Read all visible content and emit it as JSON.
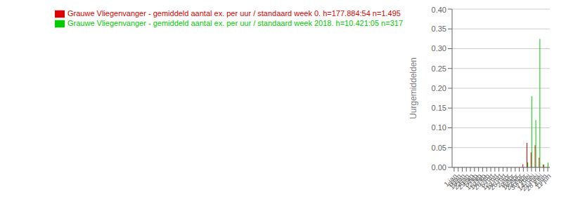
{
  "chart_data": {
    "type": "bar",
    "ylabel": "Uurgemiddelden",
    "categories": [
      "1 jan",
      "6 jan",
      "15 jan",
      "22 jan",
      "29 jan",
      "5 feb",
      "12 feb",
      "19 feb",
      "26 feb",
      "5 mrt",
      "12 mrt",
      "19 mrt",
      "26 mrt",
      "2 apr",
      "9 apr",
      "16 apr",
      "23 apr",
      "30 apr",
      "7 mei",
      "14 mei",
      "21 mei",
      "28 mei",
      "4 jun",
      "11 jun"
    ],
    "series": [
      {
        "name": "Grauwe Vliegenvanger - gemiddeld aantal ex. per uur / standaard week 0. h=177.884:54 n=1.495",
        "color": "#dd0000",
        "values": [
          0.0,
          0.0,
          0.0,
          0.0,
          0.0,
          0.0,
          0.0,
          0.0,
          0.0,
          0.0,
          0.0,
          0.0,
          0.0,
          0.0,
          0.0,
          0.0,
          0.0,
          0.008,
          0.062,
          0.038,
          0.056,
          0.025,
          0.007,
          0.0
        ]
      },
      {
        "name": "Grauwe Vliegenvanger - gemiddeld aantal ex. per uur / standaard week 2018. h=10.421:05 n=317",
        "color": "#00cc00",
        "values": [
          0.0,
          0.0,
          0.0,
          0.0,
          0.0,
          0.0,
          0.0,
          0.0,
          0.0,
          0.0,
          0.0,
          0.0,
          0.0,
          0.0,
          0.0,
          0.0,
          0.0,
          0.0,
          0.013,
          0.18,
          0.12,
          0.325,
          0.007,
          0.012
        ]
      }
    ],
    "ylim": [
      0,
      0.4
    ],
    "yticks": [
      {
        "value": 0,
        "label": "0.00"
      },
      0.05,
      {
        "value": 0.1,
        "label": "0.10"
      },
      0.15,
      {
        "value": 0.2,
        "label": "0.20"
      },
      0.25,
      {
        "value": 0.3,
        "label": "0.30"
      },
      0.35,
      {
        "value": 0.4,
        "label": "0.40"
      }
    ],
    "grid": true,
    "legend": "upper left"
  }
}
